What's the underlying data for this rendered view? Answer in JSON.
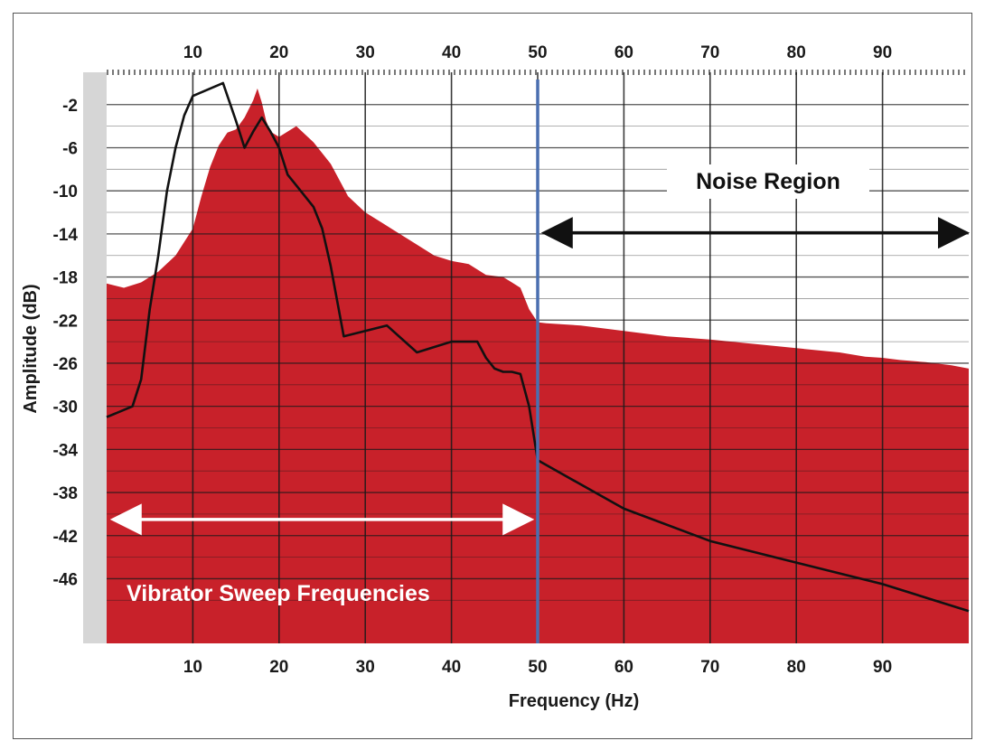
{
  "chart_data": {
    "type": "area",
    "xlabel": "Frequency (Hz)",
    "ylabel": "Amplitude (dB)",
    "xlim": [
      0,
      100
    ],
    "ylim": [
      -52,
      1
    ],
    "grid": true,
    "x_ticks": [
      10,
      20,
      30,
      40,
      50,
      60,
      70,
      80,
      90
    ],
    "y_ticks": [
      -2,
      -6,
      -10,
      -14,
      -18,
      -22,
      -26,
      -30,
      -34,
      -38,
      -42,
      -46
    ],
    "divider_x": 50,
    "series": [
      {
        "kind": "filled-spectrum",
        "color": "#c8212a",
        "x": [
          0,
          2,
          4,
          6,
          8,
          10,
          11,
          12,
          13,
          14,
          15,
          16,
          17,
          17.5,
          18,
          18.5,
          19,
          20,
          22,
          24,
          26,
          28,
          30,
          32,
          34,
          36,
          38,
          40,
          42,
          44,
          46,
          47,
          48,
          49,
          50,
          51,
          55,
          60,
          65,
          70,
          75,
          80,
          85,
          88,
          90,
          92,
          95,
          98,
          100
        ],
        "values": [
          -18.6,
          -19.0,
          -18.5,
          -17.5,
          -16.0,
          -13.5,
          -10.5,
          -7.8,
          -5.8,
          -4.6,
          -4.3,
          -3.2,
          -1.6,
          -0.5,
          -1.8,
          -3.5,
          -4.5,
          -5.0,
          -4.0,
          -5.5,
          -7.5,
          -10.5,
          -12.0,
          -13.0,
          -14.0,
          -15.0,
          -16.0,
          -16.5,
          -16.8,
          -17.8,
          -18.0,
          -18.5,
          -19.0,
          -21.0,
          -22.2,
          -22.3,
          -22.5,
          -23.0,
          -23.5,
          -23.8,
          -24.2,
          -24.6,
          -25.0,
          -25.4,
          -25.5,
          -25.7,
          -25.9,
          -26.2,
          -26.5
        ]
      },
      {
        "kind": "sweep-line",
        "color": "#111111",
        "x": [
          0,
          3,
          4,
          5,
          6,
          7,
          8,
          9,
          10,
          13.5,
          15,
          16,
          17,
          18,
          19,
          20,
          21,
          22,
          23,
          24,
          25,
          26,
          27.5,
          30,
          32.5,
          36,
          40,
          43,
          44,
          45,
          46,
          47,
          48,
          49,
          50,
          60,
          70,
          80,
          90,
          100
        ],
        "values": [
          -31.0,
          -30.0,
          -27.5,
          -21.0,
          -16.0,
          -10.0,
          -6.0,
          -3.0,
          -1.2,
          0.0,
          -3.5,
          -6.0,
          -4.5,
          -3.2,
          -4.5,
          -6.0,
          -8.5,
          -9.5,
          -10.5,
          -11.5,
          -13.5,
          -17.0,
          -23.5,
          -23.0,
          -22.5,
          -25.0,
          -24.0,
          -24.0,
          -25.5,
          -26.5,
          -26.8,
          -26.8,
          -27.0,
          -30.0,
          -35.0,
          -39.5,
          -42.5,
          -44.5,
          -46.5,
          -49.0
        ]
      }
    ],
    "annotations": {
      "noise_region": {
        "label": "Noise Region",
        "x_start": 50.5,
        "x_end": 100,
        "y": -13.9
      },
      "sweep": {
        "label": "Vibrator Sweep Frequencies",
        "x_start": 0.5,
        "x_end": 49.5,
        "y": -40.5
      }
    }
  },
  "colors": {
    "fill": "#c8212a",
    "line": "#111111",
    "divider": "#4a6fb0",
    "sweep_arrow": "#ffffff",
    "grid": "#1a1a1a",
    "background": "#ffffff"
  }
}
